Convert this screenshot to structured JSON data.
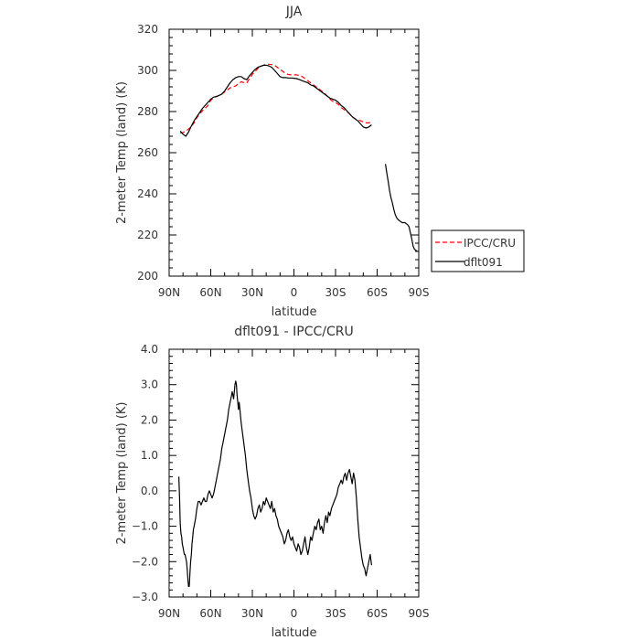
{
  "chart_data": [
    {
      "type": "line",
      "title": "JJA",
      "xlabel": "latitude",
      "ylabel": "2-meter Temp (land) (K)",
      "xlim": [
        90,
        -90
      ],
      "ylim": [
        200,
        320
      ],
      "xticks": [
        90,
        60,
        30,
        0,
        -30,
        -60,
        -90
      ],
      "xtick_labels": [
        "90N",
        "60N",
        "30N",
        "0",
        "30S",
        "60S",
        "90S"
      ],
      "yticks": [
        200,
        220,
        240,
        260,
        280,
        300,
        320
      ],
      "ytick_labels": [
        "200",
        "220",
        "240",
        "260",
        "280",
        "300",
        "320"
      ],
      "legend": {
        "placement": "outside-right",
        "entries": [
          "IPCC/CRU",
          "dflt091"
        ]
      },
      "series": [
        {
          "name": "IPCC/CRU",
          "color": "#ff0000",
          "dash": "dashed",
          "x": [
            82,
            80,
            78,
            75,
            72,
            70,
            68,
            65,
            62,
            60,
            57,
            55,
            52,
            50,
            48,
            46,
            44,
            42,
            40,
            38,
            36,
            34,
            32,
            30,
            28,
            26,
            24,
            22,
            20,
            18,
            16,
            14,
            12,
            10,
            8,
            6,
            4,
            2,
            0,
            -2,
            -4,
            -6,
            -8,
            -10,
            -12,
            -14,
            -16,
            -18,
            -20,
            -22,
            -24,
            -26,
            -28,
            -30,
            -32,
            -34,
            -36,
            -38,
            -40,
            -42,
            -44,
            -46,
            -48,
            -50,
            -52,
            -54,
            -56
          ],
          "y": [
            269.5,
            269.8,
            270.5,
            272,
            274.5,
            277,
            279,
            281,
            283,
            285.5,
            287,
            287.5,
            288.5,
            289.5,
            290.5,
            291.5,
            292,
            292.5,
            293.5,
            294.5,
            294,
            294,
            296,
            298,
            299.5,
            301,
            302,
            302.5,
            303,
            303,
            302.8,
            302.5,
            301.5,
            300.5,
            299.5,
            298.5,
            298,
            297.8,
            297.8,
            297.8,
            297.5,
            297,
            296,
            295,
            294,
            293,
            292,
            291,
            290,
            289,
            287.5,
            286,
            285,
            284.5,
            283.5,
            282,
            281,
            280,
            279,
            277.5,
            276.5,
            276,
            275.5,
            275,
            274.5,
            274.5,
            275
          ]
        },
        {
          "name": "dflt091",
          "color": "#000000",
          "dash": "solid",
          "x": [
            82,
            80,
            78,
            76,
            74,
            72,
            70,
            68,
            66,
            64,
            62,
            60,
            58,
            55,
            52,
            50,
            48,
            46,
            44,
            42,
            40,
            38,
            36,
            34,
            32,
            30,
            28,
            26,
            24,
            22,
            20,
            18,
            16,
            14,
            12,
            10,
            8,
            6,
            4,
            2,
            0,
            -2,
            -4,
            -6,
            -8,
            -10,
            -12,
            -14,
            -16,
            -18,
            -20,
            -22,
            -24,
            -26,
            -28,
            -30,
            -32,
            -34,
            -36,
            -38,
            -40,
            -42,
            -44,
            -46,
            -48,
            -50,
            -52,
            -54,
            -56,
            null,
            -66,
            -67,
            -68,
            -69,
            -70,
            -71,
            -72,
            -73,
            -74,
            -75,
            -76,
            -77,
            -78,
            -79,
            -80,
            -81,
            -82,
            -83,
            -84,
            -85,
            -86,
            -87,
            -88,
            -89
          ],
          "y": [
            270.5,
            269,
            268,
            270,
            273,
            275.5,
            277.5,
            279.5,
            281.5,
            283,
            284.5,
            286,
            287,
            287.5,
            288.5,
            290,
            292,
            294,
            295.5,
            296.5,
            297,
            297,
            296,
            295.5,
            297.5,
            299,
            300.5,
            301.5,
            302,
            302.5,
            302.5,
            302.2,
            301.5,
            300,
            298.5,
            297,
            296.5,
            296.5,
            296.3,
            296.3,
            296.2,
            296,
            295.5,
            295,
            294.5,
            294,
            293,
            292.5,
            291.5,
            290.5,
            289.5,
            288.5,
            287.5,
            286.5,
            286,
            285.5,
            284.5,
            283,
            282,
            280.5,
            279,
            277.5,
            276.5,
            275.5,
            274,
            272.5,
            272,
            272.5,
            273.5,
            null,
            254.5,
            250,
            246,
            241.5,
            238,
            235.5,
            232.5,
            230,
            228.5,
            227.5,
            227,
            226.5,
            226,
            226,
            226,
            225.5,
            225,
            224,
            221,
            218,
            214.5,
            213,
            212.5,
            212
          ]
        }
      ]
    },
    {
      "type": "line",
      "title": "dflt091 - IPCC/CRU",
      "xlabel": "latitude",
      "ylabel": "2-meter Temp (land) (K)",
      "xlim": [
        90,
        -90
      ],
      "ylim": [
        -3,
        4
      ],
      "xticks": [
        90,
        60,
        30,
        0,
        -30,
        -60,
        -90
      ],
      "xtick_labels": [
        "90N",
        "60N",
        "30N",
        "0",
        "30S",
        "60S",
        "90S"
      ],
      "yticks": [
        -3,
        -2,
        -1,
        0,
        1,
        2,
        3,
        4
      ],
      "ytick_labels": [
        "−3.0",
        "−2.0",
        "−1.0",
        "0.0",
        "1.0",
        "2.0",
        "3.0",
        "4.0"
      ],
      "series": [
        {
          "color": "#000000",
          "dash": "solid",
          "x": [
            83,
            82.5,
            82,
            81.5,
            81,
            80.5,
            80,
            79.5,
            79,
            78.5,
            78,
            77.5,
            77,
            76.5,
            76,
            75.5,
            75,
            74.5,
            74,
            73.5,
            73,
            72.5,
            72,
            71,
            70,
            69,
            68,
            67,
            66,
            65,
            64,
            63,
            62,
            61,
            60,
            59,
            58,
            57,
            56,
            55,
            54,
            53,
            52,
            51,
            50,
            49,
            48,
            47,
            46,
            45.5,
            45,
            44.5,
            44,
            43.5,
            43,
            42.5,
            42,
            41.5,
            41,
            40.5,
            40,
            39.5,
            39,
            38.5,
            38,
            37,
            36,
            35,
            34,
            33,
            32,
            31,
            30,
            29,
            28,
            27,
            26,
            25,
            24,
            23,
            22,
            21,
            20,
            19,
            18,
            17,
            16,
            15,
            14,
            13,
            12,
            11,
            10,
            9,
            8,
            7,
            6,
            5,
            4,
            3,
            2,
            1,
            0,
            -1,
            -2,
            -3,
            -4,
            -5,
            -6,
            -7,
            -8,
            -9,
            -10,
            -11,
            -12,
            -13,
            -14,
            -15,
            -16,
            -17,
            -18,
            -19,
            -20,
            -21,
            -22,
            -23,
            -24,
            -25,
            -26,
            -27,
            -28,
            -29,
            -30,
            -31,
            -32,
            -33,
            -34,
            -35,
            -36,
            -37,
            -38,
            -39,
            -40,
            -41,
            -42,
            -43,
            -44,
            -45,
            -46,
            -47,
            -48,
            -49,
            -50,
            -51,
            -52,
            -53,
            -54,
            -55,
            -56
          ],
          "y": [
            0.4,
            -0.2,
            -0.9,
            -1.2,
            -1.3,
            -1.5,
            -1.6,
            -1.7,
            -1.8,
            -1.8,
            -1.9,
            -2.0,
            -2.2,
            -2.5,
            -2.7,
            -2.7,
            -2.3,
            -2.0,
            -1.8,
            -1.5,
            -1.3,
            -1.1,
            -1.0,
            -0.8,
            -0.5,
            -0.3,
            -0.3,
            -0.4,
            -0.3,
            -0.2,
            -0.3,
            -0.3,
            -0.1,
            0.0,
            -0.1,
            -0.2,
            -0.1,
            0.1,
            0.3,
            0.5,
            0.7,
            0.9,
            1.2,
            1.4,
            1.6,
            1.8,
            2.0,
            2.3,
            2.5,
            2.6,
            2.7,
            2.8,
            2.7,
            2.6,
            2.8,
            3.0,
            3.1,
            3.0,
            2.7,
            2.5,
            2.3,
            2.5,
            2.3,
            2.1,
            1.9,
            1.6,
            1.3,
            1.0,
            0.6,
            0.3,
            0.0,
            -0.2,
            -0.5,
            -0.7,
            -0.8,
            -0.7,
            -0.5,
            -0.4,
            -0.6,
            -0.5,
            -0.3,
            -0.4,
            -0.2,
            -0.3,
            -0.4,
            -0.5,
            -0.3,
            -0.6,
            -0.5,
            -0.7,
            -0.8,
            -1.0,
            -1.1,
            -1.2,
            -1.3,
            -1.5,
            -1.4,
            -1.2,
            -1.1,
            -1.3,
            -1.4,
            -1.3,
            -1.5,
            -1.6,
            -1.7,
            -1.5,
            -1.6,
            -1.8,
            -1.7,
            -1.5,
            -1.3,
            -1.6,
            -1.8,
            -1.6,
            -1.3,
            -1.4,
            -1.2,
            -1.0,
            -1.1,
            -0.9,
            -0.8,
            -1.1,
            -1.0,
            -1.2,
            -0.9,
            -0.7,
            -0.9,
            -0.6,
            -0.7,
            -0.5,
            -0.4,
            -0.3,
            -0.2,
            -0.1,
            0.1,
            0.2,
            0.3,
            0.2,
            0.4,
            0.5,
            0.3,
            0.5,
            0.6,
            0.4,
            0.2,
            0.5,
            0.3,
            -0.2,
            -0.8,
            -1.3,
            -1.6,
            -1.9,
            -2.1,
            -2.2,
            -2.4,
            -2.2,
            -2.0,
            -1.8,
            -2.1
          ]
        }
      ]
    }
  ]
}
